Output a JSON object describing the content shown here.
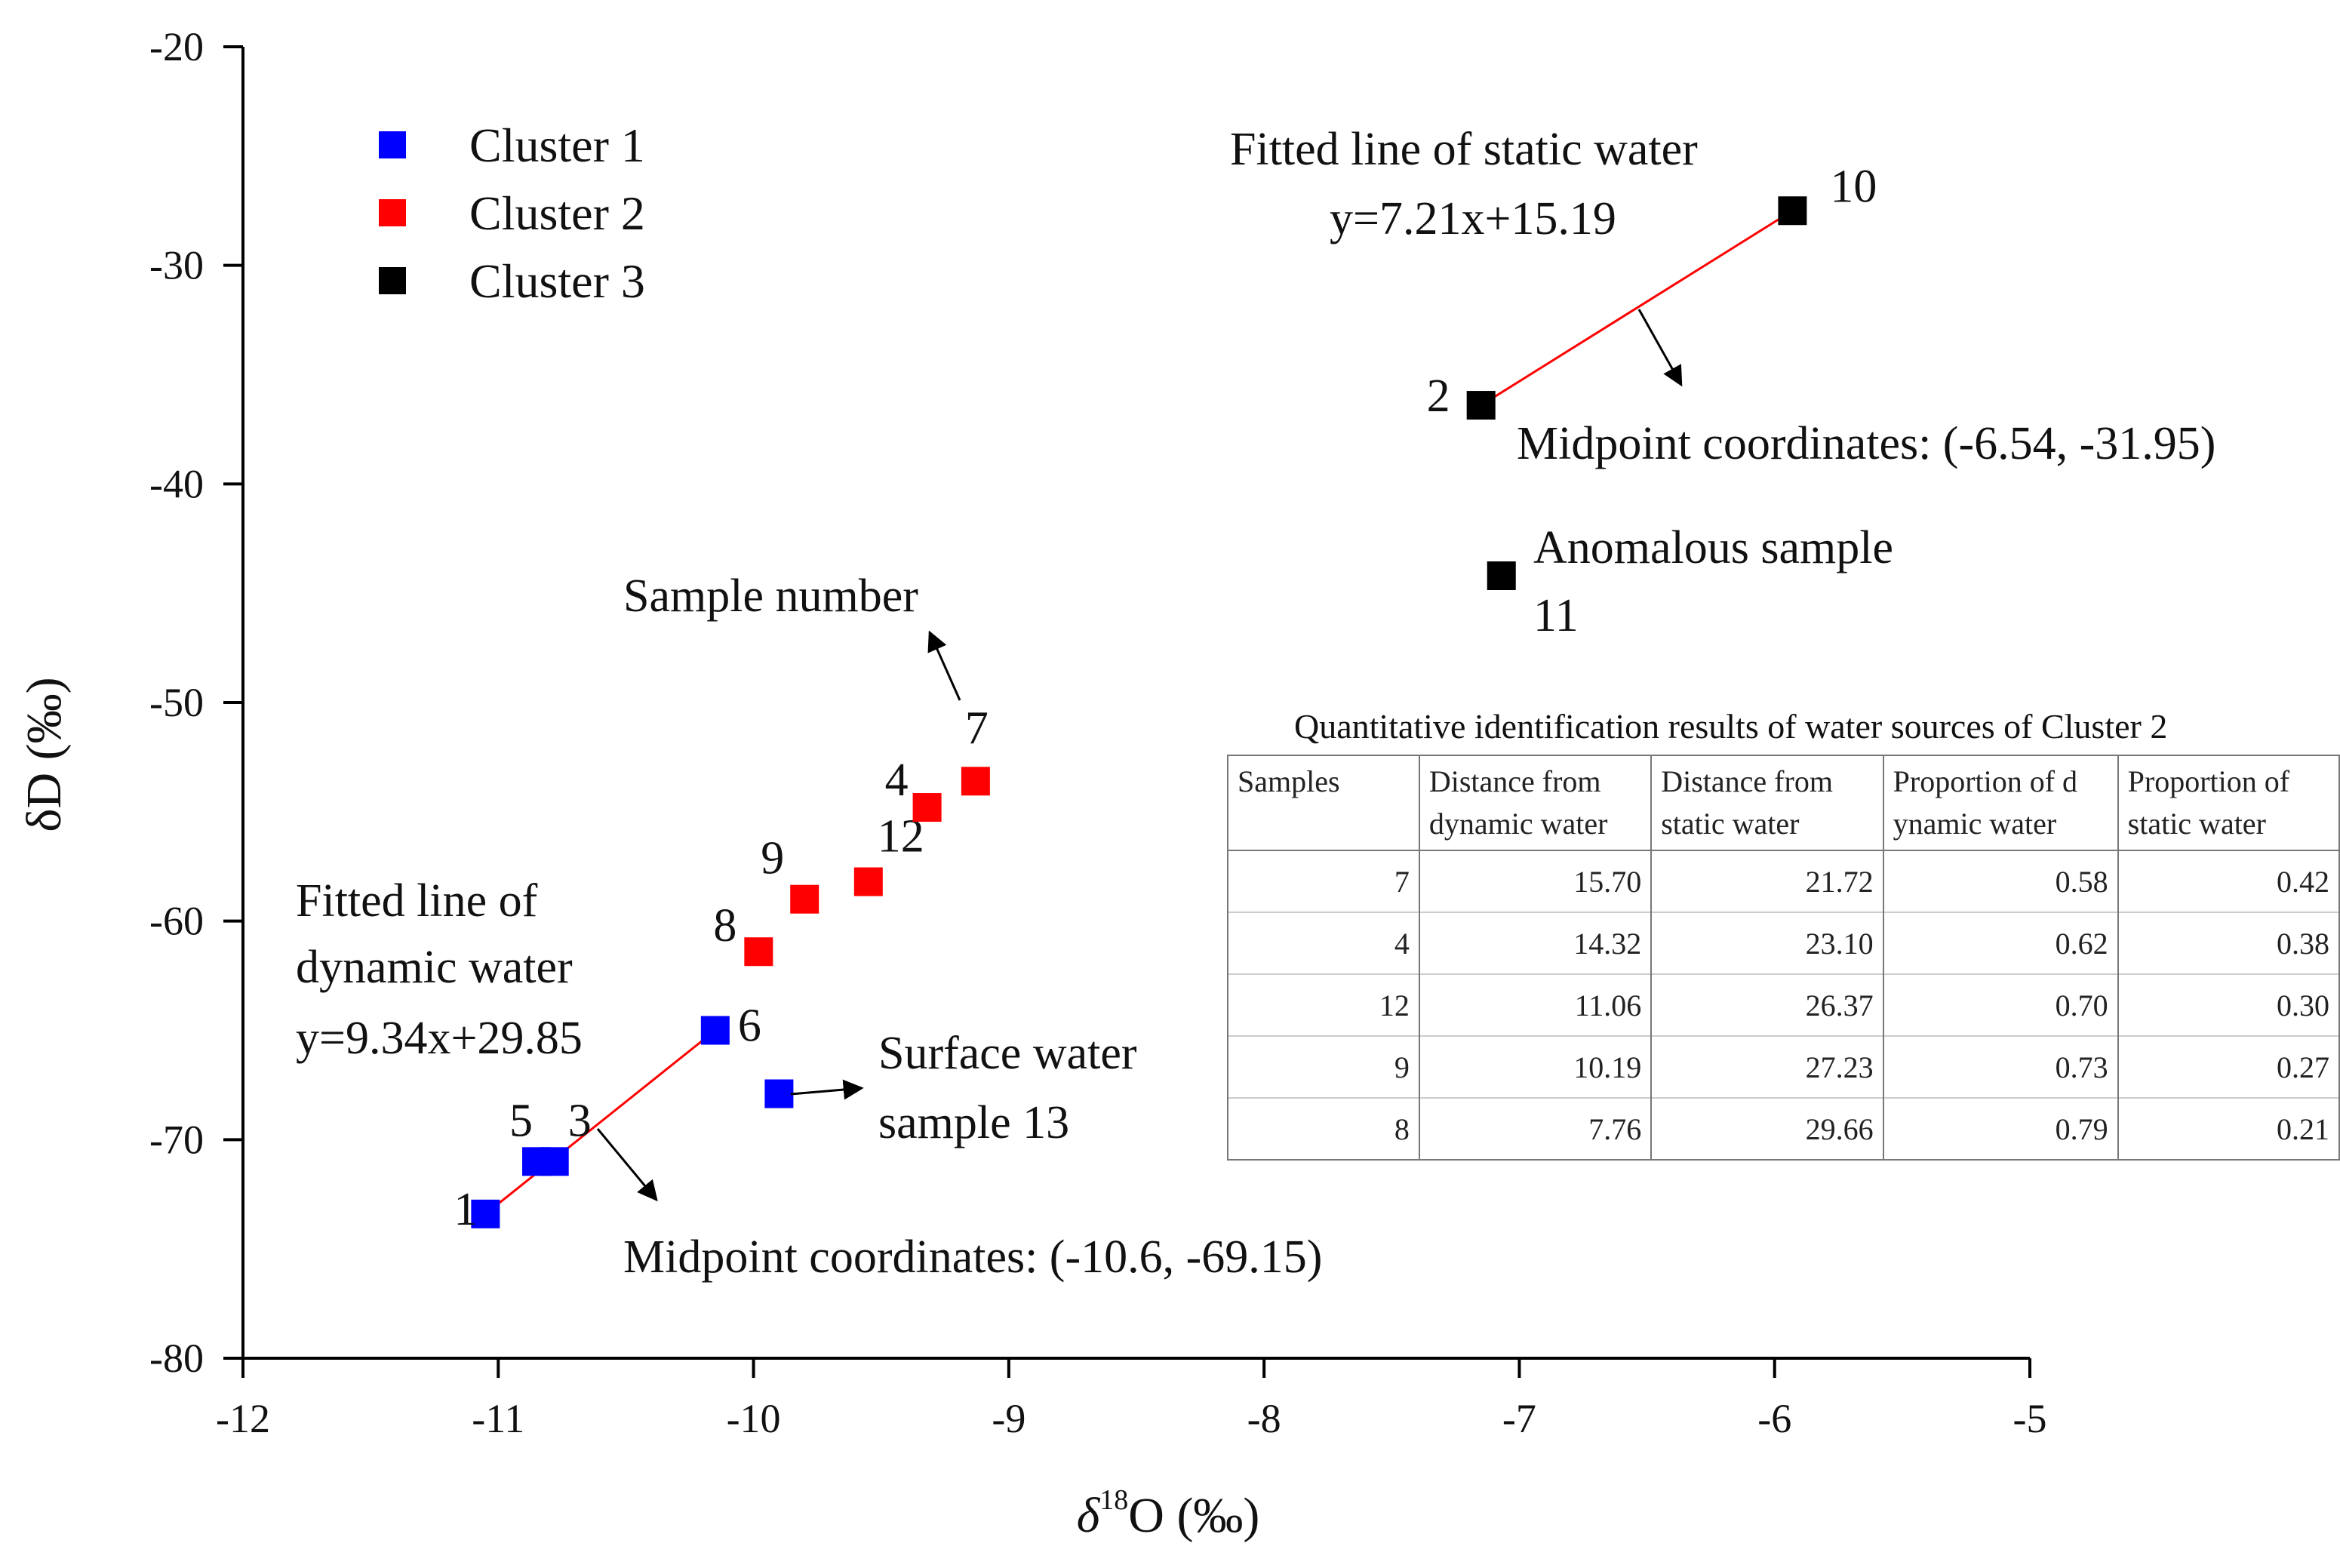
{
  "chart_data": {
    "type": "scatter",
    "xlabel_symbol": "δ",
    "xlabel_sup": "18",
    "xlabel_rest": "O (‰)",
    "ylabel": "δD (‰)",
    "xlim": [
      -12,
      -5
    ],
    "ylim": [
      -80,
      -20
    ],
    "xticks": [
      -12,
      -11,
      -10,
      -9,
      -8,
      -7,
      -6,
      -5
    ],
    "yticks": [
      -80,
      -70,
      -60,
      -50,
      -40,
      -30,
      -20
    ],
    "grid": false,
    "legend_position": "top-left",
    "series": [
      {
        "name": "Cluster 1",
        "color": "#0000ff",
        "points": [
          {
            "label": "1",
            "x": -11.05,
            "y": -73.4
          },
          {
            "label": "5",
            "x": -10.85,
            "y": -71.0
          },
          {
            "label": "3",
            "x": -10.78,
            "y": -71.0
          },
          {
            "label": "6",
            "x": -10.15,
            "y": -65.0
          },
          {
            "label": "",
            "x": -9.9,
            "y": -67.9
          }
        ]
      },
      {
        "name": "Cluster 2",
        "color": "#ff0000",
        "points": [
          {
            "label": "8",
            "x": -9.98,
            "y": -61.4
          },
          {
            "label": "9",
            "x": -9.8,
            "y": -59.0
          },
          {
            "label": "12",
            "x": -9.55,
            "y": -58.2
          },
          {
            "label": "4",
            "x": -9.32,
            "y": -54.8
          },
          {
            "label": "7",
            "x": -9.13,
            "y": -53.6
          }
        ]
      },
      {
        "name": "Cluster 3",
        "color": "#000000",
        "points": [
          {
            "label": "2",
            "x": -7.15,
            "y": -36.4
          },
          {
            "label": "10",
            "x": -5.93,
            "y": -27.5
          },
          {
            "label": "",
            "x": -7.07,
            "y": -44.2
          }
        ]
      }
    ],
    "fit_lines": [
      {
        "name": "dynamic",
        "x": [
          -11.05,
          -10.15
        ],
        "y": [
          -73.4,
          -65.0
        ],
        "color": "#ff0000"
      },
      {
        "name": "static",
        "x": [
          -7.15,
          -5.93
        ],
        "y": [
          -36.4,
          -27.5
        ],
        "color": "#ff0000"
      }
    ],
    "annotations": {
      "static_line_title": "Fitted line of static water",
      "static_line_eq": "y=7.21x+15.19",
      "static_mid": "Midpoint coordinates: (-6.54, -31.95)",
      "anomalous_1": "Anomalous sample",
      "anomalous_2": "11",
      "sample_number": "Sample number",
      "dynamic_line_title_1": "Fitted line of",
      "dynamic_line_title_2": "dynamic water",
      "dynamic_line_eq": "y=9.34x+29.85",
      "surface_1": "Surface water",
      "surface_2": "sample 13",
      "dynamic_mid": "Midpoint coordinates: (-10.6, -69.15)"
    },
    "table": {
      "caption": "Quantitative identification results of water sources of Cluster 2",
      "headers": [
        [
          "Samples"
        ],
        [
          "Distance from",
          "dynamic water"
        ],
        [
          "Distance from",
          "static water"
        ],
        [
          "Proportion of d",
          "ynamic water"
        ],
        [
          "Proportion of",
          "static water"
        ]
      ],
      "rows": [
        [
          "7",
          "15.70",
          "21.72",
          "0.58",
          "0.42"
        ],
        [
          "4",
          "14.32",
          "23.10",
          "0.62",
          "0.38"
        ],
        [
          "12",
          "11.06",
          "26.37",
          "0.70",
          "0.30"
        ],
        [
          "9",
          "10.19",
          "27.23",
          "0.73",
          "0.27"
        ],
        [
          "8",
          "7.76",
          "29.66",
          "0.79",
          "0.21"
        ]
      ]
    }
  }
}
